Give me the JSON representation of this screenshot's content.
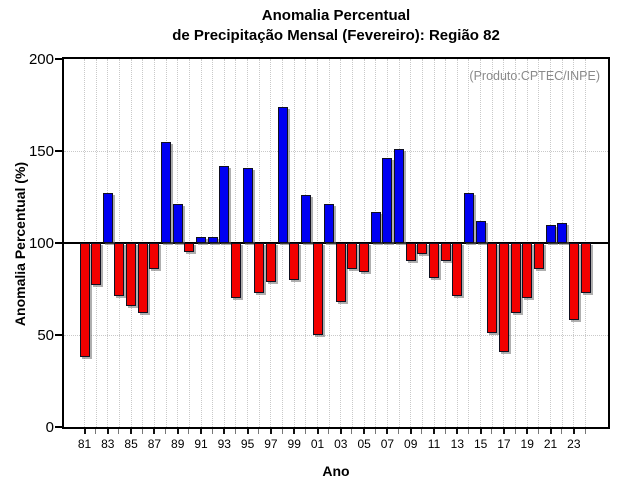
{
  "chart_data": {
    "type": "bar",
    "title_line1": "Anomalia Percentual",
    "title_line2": "de Precipitação Mensal (Fevereiro): Região 82",
    "annotation": "(Produto:CPTEC/INPE)",
    "xlabel": "Ano",
    "ylabel": "Anomalia Percentual (%)",
    "baseline": 100,
    "ylim": [
      0,
      200
    ],
    "yticks": [
      0,
      50,
      100,
      150,
      200
    ],
    "grid": "dotted",
    "x_tick_labels": [
      "81",
      "83",
      "85",
      "87",
      "89",
      "91",
      "93",
      "95",
      "97",
      "99",
      "01",
      "03",
      "05",
      "07",
      "09",
      "11",
      "13",
      "15",
      "17",
      "19",
      "21",
      "23"
    ],
    "years": [
      "81",
      "82",
      "83",
      "84",
      "85",
      "86",
      "87",
      "88",
      "89",
      "90",
      "91",
      "92",
      "93",
      "94",
      "95",
      "96",
      "97",
      "98",
      "99",
      "00",
      "01",
      "02",
      "03",
      "04",
      "05",
      "06",
      "07",
      "08",
      "09",
      "10",
      "11",
      "12",
      "13",
      "14",
      "15",
      "16",
      "17",
      "18",
      "19",
      "20",
      "21",
      "22",
      "23",
      "24"
    ],
    "values": [
      38,
      77,
      127,
      71,
      66,
      62,
      86,
      155,
      121,
      95,
      103,
      103,
      142,
      70,
      141,
      73,
      79,
      174,
      80,
      126,
      50,
      121,
      68,
      86,
      84,
      117,
      146,
      151,
      90,
      94,
      81,
      90,
      71,
      127,
      112,
      51,
      41,
      62,
      70,
      86,
      110,
      111,
      58,
      73
    ],
    "colors": {
      "above": "#0000f2",
      "below": "#f20000",
      "bar_border": "#101020",
      "annotation": "#8a8a8a",
      "grid": "#c9c9c9",
      "axis": "#000000",
      "tick_labeled": "#111111",
      "tick_minor": "#777777"
    }
  }
}
